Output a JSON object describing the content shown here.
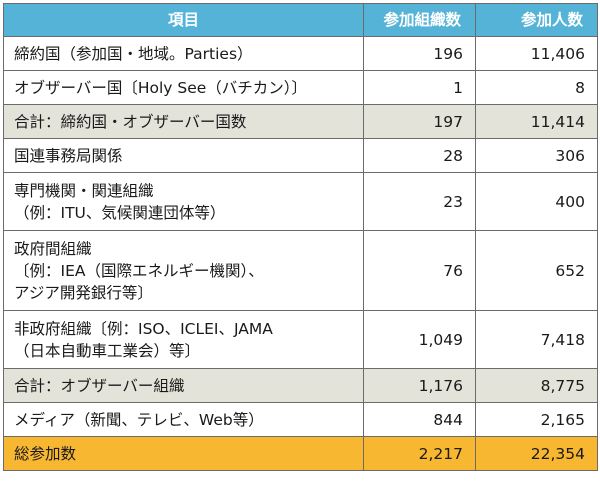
{
  "header": {
    "col_item": "項目",
    "col_countries": "参加組織数",
    "col_participants": "参加人数"
  },
  "rows": [
    {
      "type": "normal",
      "lines": [
        "締約国（参加国・地域。Parties）"
      ],
      "orgs": "196",
      "people": "11,406"
    },
    {
      "type": "normal",
      "lines": [
        "オブザーバー国〔Holy See（バチカン）〕"
      ],
      "orgs": "1",
      "people": "8"
    },
    {
      "type": "subtotal",
      "lines": [
        "合計：締約国・オブザーバー国数"
      ],
      "orgs": "197",
      "people": "11,414"
    },
    {
      "type": "normal",
      "lines": [
        "国連事務局関係"
      ],
      "orgs": "28",
      "people": "306"
    },
    {
      "type": "normal",
      "lines": [
        "専門機関・関連組織",
        "（例：ITU、気候関連団体等）"
      ],
      "orgs": "23",
      "people": "400"
    },
    {
      "type": "normal",
      "lines": [
        "政府間組織",
        "〔例：IEA（国際エネルギー機関）、",
        "アジア開発銀行等〕"
      ],
      "orgs": "76",
      "people": "652"
    },
    {
      "type": "normal",
      "lines": [
        "非政府組織〔例：ISO、ICLEI、JAMA",
        "（日本自動車工業会）等〕"
      ],
      "orgs": "1,049",
      "people": "7,418"
    },
    {
      "type": "subtotal",
      "lines": [
        "合計：オブザーバー組織"
      ],
      "orgs": "1,176",
      "people": "8,775"
    },
    {
      "type": "normal",
      "lines": [
        "メディア（新聞、テレビ、Web等）"
      ],
      "orgs": "844",
      "people": "2,165"
    },
    {
      "type": "total",
      "lines": [
        "総参加数"
      ],
      "orgs": "2,217",
      "people": "22,354"
    }
  ],
  "colors": {
    "header_bg": "#55b3d8",
    "subtotal_bg": "#e3e3d9",
    "total_bg": "#f7b731"
  }
}
